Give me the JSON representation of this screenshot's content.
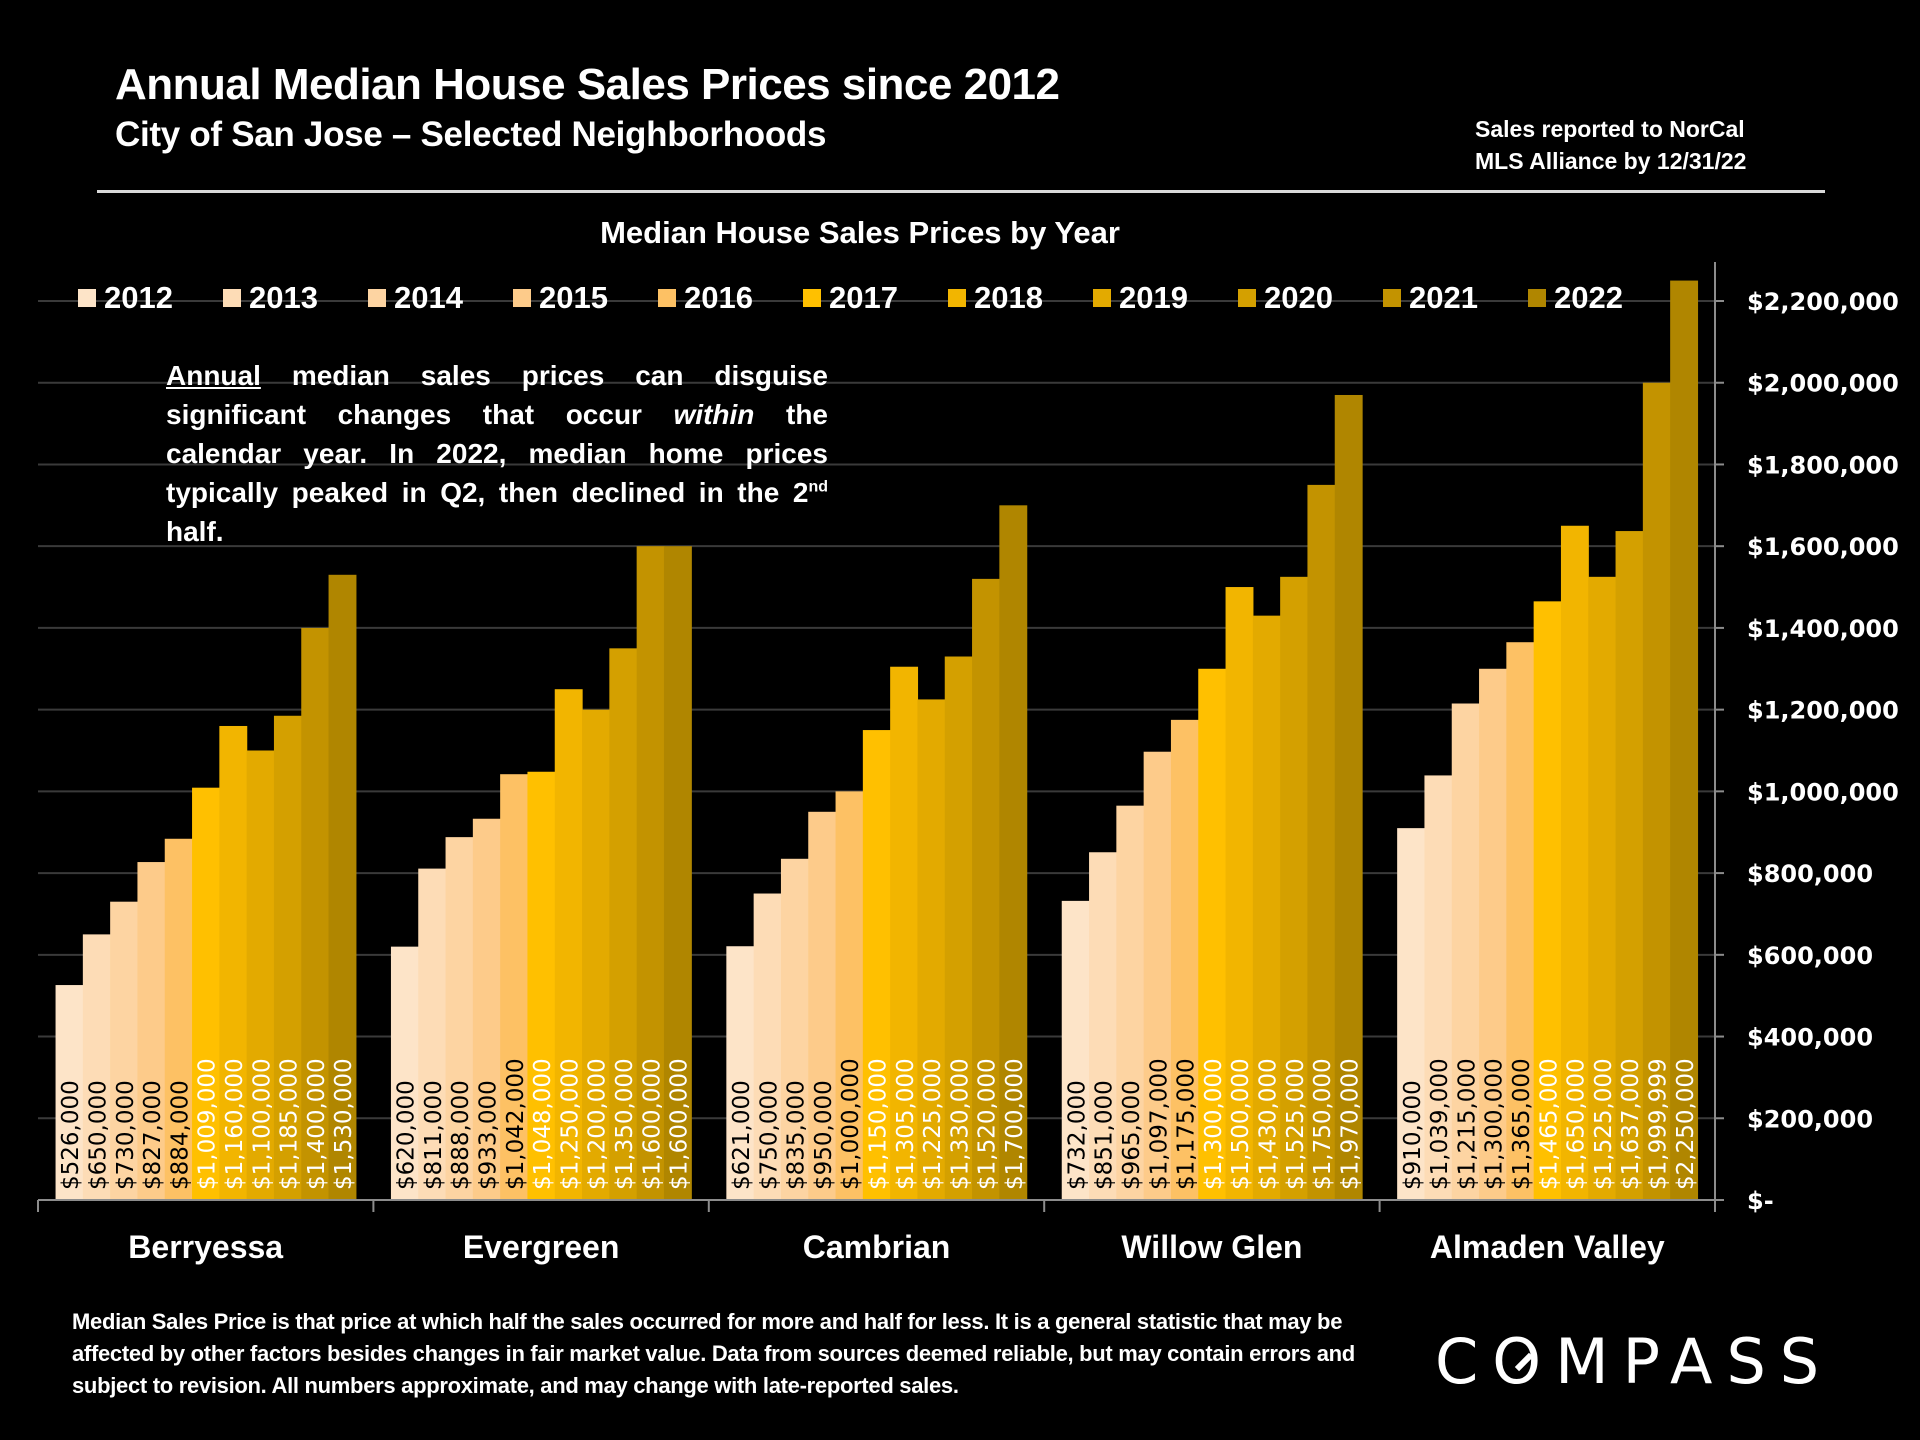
{
  "header": {
    "title": "Annual Median House Sales Prices since 2012",
    "subtitle": "City of San Jose – Selected Neighborhoods",
    "source_line1": "Sales reported to NorCal",
    "source_line2": "MLS Alliance by 12/31/22"
  },
  "annotation": {
    "underlined_word": "Annual",
    "part1": " median sales prices can disguise significant changes that occur ",
    "italic_word": "within",
    "part2": " the calendar year. In 2022, median home prices typically peaked in Q2, then declined in the 2",
    "superscript": "nd",
    "part3": " half."
  },
  "footer": {
    "disclaimer": "Median Sales Price is that price at which half the sales occurred for more and half for less. It is a general statistic that may be affected by other factors besides changes in fair market value. Data from sources deemed reliable, but may contain errors and subject to revision.  All numbers approximate, and may change with late-reported sales."
  },
  "logo": {
    "text_before": "C",
    "text_o": "O",
    "text_after": "MPASS"
  },
  "chart_data": {
    "type": "bar",
    "title": "Median House Sales Prices by Year",
    "xlabel": "",
    "ylabel": "",
    "ylim": [
      0,
      2200000
    ],
    "yticks": [
      0,
      200000,
      400000,
      600000,
      800000,
      1000000,
      1200000,
      1400000,
      1600000,
      1800000,
      2000000,
      2200000
    ],
    "ytick_labels": [
      "$-",
      "$200,000",
      "$400,000",
      "$600,000",
      "$800,000",
      "$1,000,000",
      "$1,200,000",
      "$1,400,000",
      "$1,600,000",
      "$1,800,000",
      "$2,000,000",
      "$2,200,000"
    ],
    "y_axis_side": "right",
    "grid": true,
    "legend_position": "top",
    "categories": [
      "Berryessa",
      "Evergreen",
      "Cambrian",
      "Willow Glen",
      "Almaden Valley"
    ],
    "series": [
      {
        "name": "2012",
        "color": "#fde4c8",
        "label_color": "#000000",
        "values": [
          526000,
          620000,
          621000,
          732000,
          910000
        ],
        "labels": [
          "$526,000",
          "$620,000",
          "$621,000",
          "$732,000",
          "$910,000"
        ]
      },
      {
        "name": "2013",
        "color": "#fddcb6",
        "label_color": "#000000",
        "values": [
          650000,
          811000,
          750000,
          851000,
          1039000
        ],
        "labels": [
          "$650,000",
          "$811,000",
          "$750,000",
          "$851,000",
          "$1,039,000"
        ]
      },
      {
        "name": "2014",
        "color": "#fdd4a2",
        "label_color": "#000000",
        "values": [
          730000,
          888000,
          835000,
          965000,
          1215000
        ],
        "labels": [
          "$730,000",
          "$888,000",
          "$835,000",
          "$965,000",
          "$1,215,000"
        ]
      },
      {
        "name": "2015",
        "color": "#fdcb8a",
        "label_color": "#000000",
        "values": [
          827000,
          933000,
          950000,
          1097000,
          1300000
        ],
        "labels": [
          "$827,000",
          "$933,000",
          "$950,000",
          "$1,097,000",
          "$1,300,000"
        ]
      },
      {
        "name": "2016",
        "color": "#fdc164",
        "label_color": "#000000",
        "values": [
          884000,
          1042000,
          1000000,
          1175000,
          1365000
        ],
        "labels": [
          "$884,000",
          "$1,042,000",
          "$1,000,000",
          "$1,175,000",
          "$1,365,000"
        ]
      },
      {
        "name": "2017",
        "color": "#ffc000",
        "label_color": "#ffffff",
        "values": [
          1009000,
          1048000,
          1150000,
          1300000,
          1465000
        ],
        "labels": [
          "$1,009,000",
          "$1,048,000",
          "$1,150,000",
          "$1,300,000",
          "$1,465,000"
        ]
      },
      {
        "name": "2018",
        "color": "#f2b500",
        "label_color": "#ffffff",
        "values": [
          1160000,
          1250000,
          1305000,
          1500000,
          1650000
        ],
        "labels": [
          "$1,160,000",
          "$1,250,000",
          "$1,305,000",
          "$1,500,000",
          "$1,650,000"
        ]
      },
      {
        "name": "2019",
        "color": "#e3aa00",
        "label_color": "#ffffff",
        "values": [
          1100000,
          1200000,
          1225000,
          1430000,
          1525000
        ],
        "labels": [
          "$1,100,000",
          "$1,200,000",
          "$1,225,000",
          "$1,430,000",
          "$1,525,000"
        ]
      },
      {
        "name": "2020",
        "color": "#d4a000",
        "label_color": "#ffffff",
        "values": [
          1185000,
          1350000,
          1330000,
          1525000,
          1637000
        ],
        "labels": [
          "$1,185,000",
          "$1,350,000",
          "$1,330,000",
          "$1,525,000",
          "$1,637,000"
        ]
      },
      {
        "name": "2021",
        "color": "#c39300",
        "label_color": "#ffffff",
        "values": [
          1400000,
          1600000,
          1520000,
          1750000,
          1999999
        ],
        "labels": [
          "$1,400,000",
          "$1,600,000",
          "$1,520,000",
          "$1,750,000",
          "$1,999,999"
        ]
      },
      {
        "name": "2022",
        "color": "#b08600",
        "label_color": "#ffffff",
        "values": [
          1530000,
          1600000,
          1700000,
          1970000,
          2250000
        ],
        "labels": [
          "$1,530,000",
          "$1,600,000",
          "$1,700,000",
          "$1,970,000",
          "$2,250,000"
        ]
      }
    ]
  }
}
